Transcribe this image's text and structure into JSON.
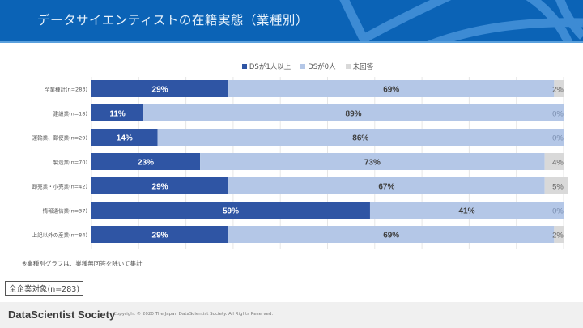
{
  "header": {
    "title": "データサイエンティストの在籍実態（業種別）"
  },
  "colors": {
    "header_bg": "#0b63b6",
    "ds_1plus": "#2f55a4",
    "ds_0": "#b4c7e7",
    "no_answer": "#d9d9d9"
  },
  "chart_data": {
    "type": "bar",
    "orientation": "horizontal",
    "stacked": true,
    "title": "データサイエンティストの在籍実態（業種別）",
    "categories": [
      "全業種計(n=283)",
      "建設業(n=18)",
      "運輸業、郵便業(n=29)",
      "製造業(n=70)",
      "卸売業・小売業(n=42)",
      "情報通信業(n=37)",
      "上記以外の産業(n=84)"
    ],
    "series": [
      {
        "name": "DSが1人以上",
        "values": [
          29,
          11,
          14,
          23,
          29,
          59,
          29
        ],
        "labels": [
          "29%",
          "11%",
          "14%",
          "23%",
          "29%",
          "59%",
          "29%"
        ]
      },
      {
        "name": "DSが0人",
        "values": [
          69,
          89,
          86,
          73,
          67,
          41,
          69
        ],
        "labels": [
          "69%",
          "89%",
          "86%",
          "73%",
          "67%",
          "41%",
          "69%"
        ]
      },
      {
        "name": "未回答",
        "values": [
          2,
          0,
          0,
          4,
          5,
          0,
          2
        ],
        "labels": [
          "2%",
          "0%",
          "0%",
          "4%",
          "5%",
          "0%",
          "2%"
        ]
      }
    ],
    "xlim": [
      0,
      100
    ],
    "grid": true,
    "legend": "top-center",
    "xlabel": "",
    "ylabel": ""
  },
  "legend": [
    "DSが1人以上",
    "DSが0人",
    "未回答"
  ],
  "footnote": "※業種別グラフは、業種無回答を除いて集計",
  "scope_label": "全企業対象(n=283)",
  "footer": {
    "brand": "DataScientist Society",
    "copyright": "Copyright © 2020 The Japan DataScientist Society. All Rights Reserved."
  }
}
